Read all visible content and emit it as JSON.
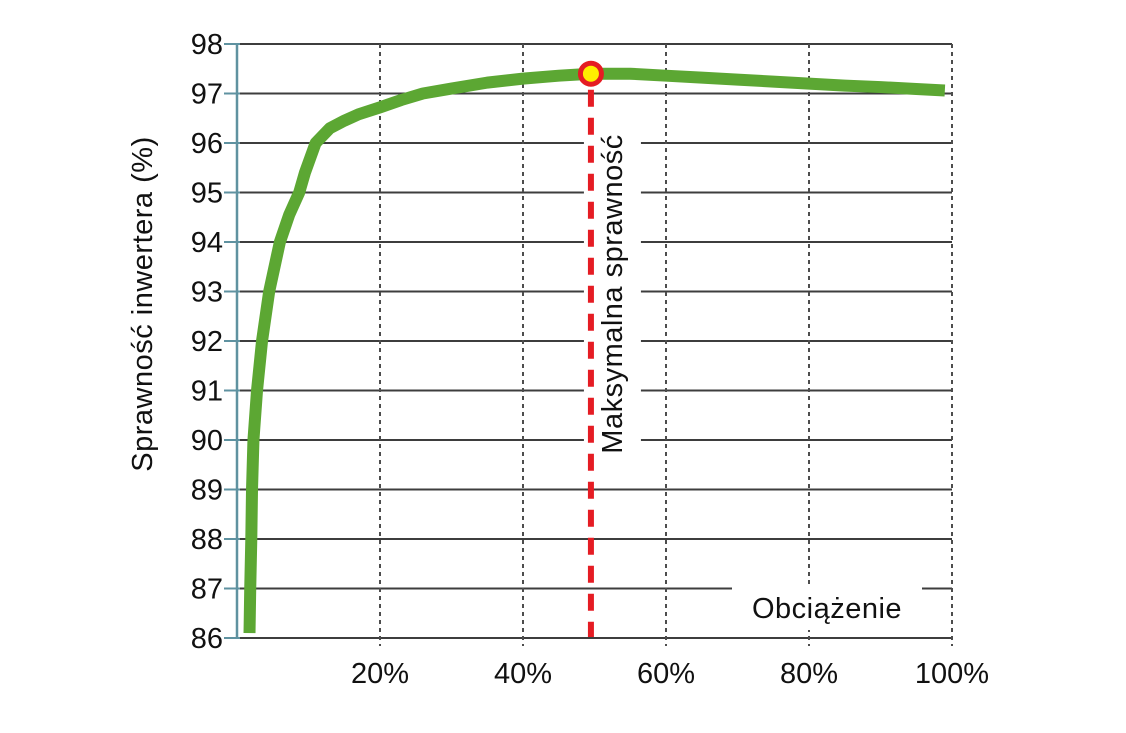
{
  "chart_data": {
    "type": "line",
    "title": "",
    "xlabel": "Obciążenie",
    "ylabel": "Sprawność inwertera (%)",
    "xlim": [
      0,
      100
    ],
    "ylim": [
      86,
      98
    ],
    "x_tick_values": [
      20,
      40,
      60,
      80,
      100
    ],
    "x_tick_labels": [
      "20%",
      "40%",
      "60%",
      "80%",
      "100%"
    ],
    "y_tick_values": [
      86,
      87,
      88,
      89,
      90,
      91,
      92,
      93,
      94,
      95,
      96,
      97,
      98
    ],
    "grid": {
      "horizontal": "solid",
      "vertical": "dashed",
      "legend": "none"
    },
    "series": [
      {
        "name": "Sprawność inwertera",
        "color": "#5ca733",
        "points": [
          [
            1.75,
            86.1
          ],
          [
            1.85,
            87.0
          ],
          [
            2.0,
            88.0
          ],
          [
            2.1,
            89.0
          ],
          [
            2.3,
            90.0
          ],
          [
            2.8,
            91.0
          ],
          [
            3.5,
            92.0
          ],
          [
            4.5,
            93.0
          ],
          [
            6.0,
            94.0
          ],
          [
            7.3,
            94.55
          ],
          [
            8.7,
            95.0
          ],
          [
            9.5,
            95.4
          ],
          [
            11,
            96.0
          ],
          [
            13,
            96.3
          ],
          [
            15,
            96.45
          ],
          [
            17,
            96.58
          ],
          [
            20,
            96.72
          ],
          [
            23,
            96.87
          ],
          [
            26,
            97.0
          ],
          [
            30,
            97.1
          ],
          [
            35,
            97.22
          ],
          [
            40,
            97.3
          ],
          [
            45,
            97.36
          ],
          [
            49.5,
            97.4
          ],
          [
            55,
            97.4
          ],
          [
            60,
            97.36
          ],
          [
            65,
            97.32
          ],
          [
            70,
            97.28
          ],
          [
            75,
            97.24
          ],
          [
            80,
            97.2
          ],
          [
            85,
            97.16
          ],
          [
            90,
            97.13
          ],
          [
            95,
            97.09
          ],
          [
            99,
            97.06
          ]
        ]
      }
    ],
    "annotation": {
      "text": "Maksymalna sprawność",
      "line_x": 49.5,
      "line_color": "#e51c23",
      "line_style": "dashed"
    },
    "max_point": {
      "x": 49.5,
      "y": 97.4,
      "marker_fill": "#ffef00",
      "marker_ring": "#e51c23"
    },
    "colors": {
      "curve": "#5ca733",
      "y_axis": "#5f92a0",
      "h_grid": "#3d3d3d",
      "v_grid": "#4d4d4d",
      "text": "#111111",
      "background": "#ffffff"
    }
  }
}
